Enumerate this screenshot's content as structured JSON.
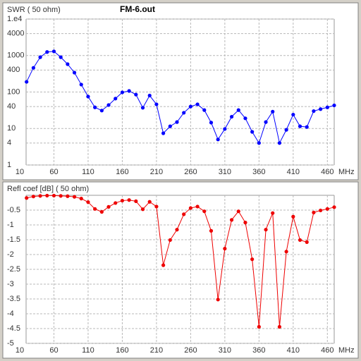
{
  "chart_data": [
    {
      "type": "line",
      "title": "SWR ( 50 ohm)",
      "subtitle": "FM-6.out",
      "x_label": "MHz",
      "log_y": true,
      "grid": true,
      "color": "#0000ff",
      "x": [
        20,
        30,
        40,
        50,
        60,
        70,
        80,
        90,
        100,
        110,
        120,
        130,
        140,
        150,
        160,
        170,
        180,
        190,
        200,
        210,
        220,
        230,
        240,
        250,
        260,
        270,
        280,
        290,
        300,
        310,
        320,
        330,
        340,
        350,
        360,
        370,
        380,
        390,
        400,
        410,
        420,
        430,
        440,
        450,
        460,
        470
      ],
      "values": [
        190,
        460,
        900,
        1250,
        1300,
        900,
        580,
        340,
        160,
        75,
        38,
        31,
        44,
        66,
        98,
        107,
        85,
        37,
        80,
        46,
        7.4,
        11.5,
        15,
        27,
        40,
        46,
        32,
        14.5,
        5,
        9.7,
        21,
        32,
        19,
        8.1,
        4,
        15,
        29,
        4,
        9.2,
        24,
        11.5,
        11,
        30,
        34,
        38,
        43
      ],
      "xlim": [
        10,
        470
      ],
      "xticks": [
        10,
        60,
        110,
        160,
        210,
        260,
        310,
        360,
        410,
        460
      ],
      "ylim": [
        1,
        10000
      ],
      "yticks": [
        {
          "value": 10000,
          "label": "1.e4"
        },
        4000,
        1000,
        400,
        100,
        40,
        10,
        4,
        1
      ]
    },
    {
      "type": "line",
      "title": "Refl coef [dB] ( 50 ohm)",
      "x_label": "MHz",
      "log_y": false,
      "grid": true,
      "color": "#ee0000",
      "x": [
        20,
        30,
        40,
        50,
        60,
        70,
        80,
        90,
        100,
        110,
        120,
        130,
        140,
        150,
        160,
        170,
        180,
        190,
        200,
        210,
        220,
        230,
        240,
        250,
        260,
        270,
        280,
        290,
        300,
        310,
        320,
        330,
        340,
        350,
        360,
        370,
        380,
        390,
        400,
        410,
        420,
        430,
        440,
        450,
        460,
        470
      ],
      "values": [
        -0.09,
        -0.04,
        -0.02,
        -0.01,
        -0.01,
        -0.02,
        -0.03,
        -0.05,
        -0.11,
        -0.23,
        -0.46,
        -0.56,
        -0.39,
        -0.26,
        -0.18,
        -0.16,
        -0.2,
        -0.47,
        -0.22,
        -0.38,
        -2.36,
        -1.51,
        -1.16,
        -0.64,
        -0.43,
        -0.38,
        -0.54,
        -1.2,
        -3.52,
        -1.8,
        -0.83,
        -0.54,
        -0.92,
        -2.16,
        -4.44,
        -1.16,
        -0.6,
        -4.44,
        -1.9,
        -0.72,
        -1.51,
        -1.58,
        -0.58,
        -0.51,
        -0.46,
        -0.4
      ],
      "xlim": [
        10,
        470
      ],
      "xticks": [
        10,
        60,
        110,
        160,
        210,
        260,
        310,
        360,
        410,
        460
      ],
      "ylim": [
        -5,
        0
      ],
      "yticks": [
        -0.5,
        -1,
        -1.5,
        -2,
        -2.5,
        -3,
        -3.5,
        -4,
        -4.5,
        -5
      ]
    }
  ]
}
